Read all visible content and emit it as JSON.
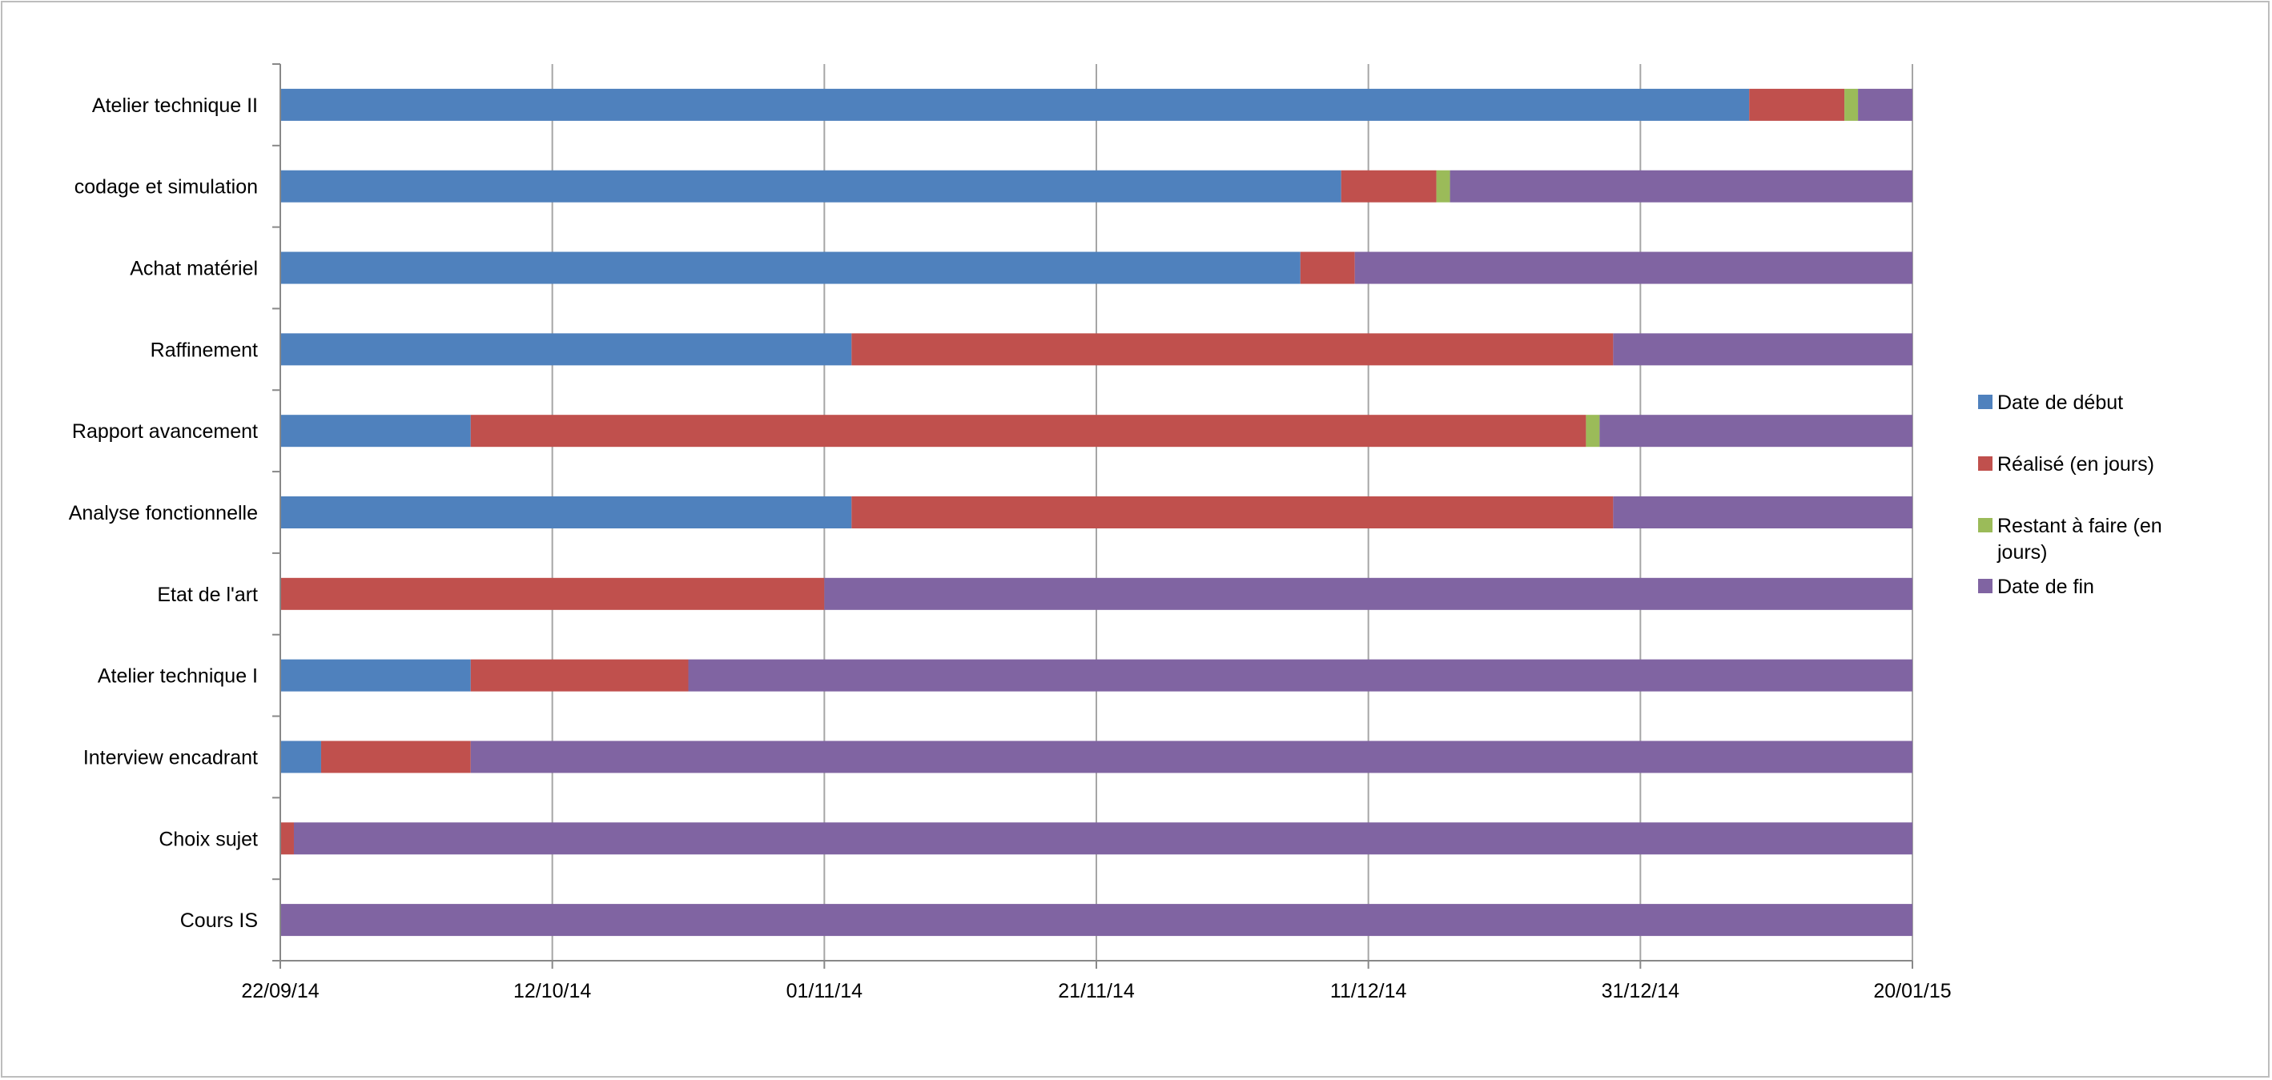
{
  "chart_data": {
    "type": "bar",
    "orientation": "horizontal",
    "stacked": true,
    "title": "",
    "xlabel": "",
    "ylabel": "",
    "categories": [
      "Cours IS",
      "Choix sujet",
      "Interview encadrant",
      "Atelier technique I",
      "Etat de l'art",
      "Analyse fonctionnelle",
      "Rapport avancement",
      "Raffinement",
      "Achat matériel",
      "codage et simulation",
      "Atelier technique II"
    ],
    "series": [
      {
        "name": "Date de début",
        "color": "#4f81bd",
        "values": [
          "",
          "",
          "2014-09-25",
          "2014-10-06",
          "",
          "2014-11-03",
          "2014-10-06",
          "2014-11-03",
          "2014-12-06",
          "2014-12-09",
          "2015-01-08"
        ]
      },
      {
        "name": "Réalisé (en jours)",
        "color": "#c0504d",
        "values": [
          0,
          1,
          11,
          16,
          40,
          56,
          82,
          56,
          4,
          7,
          7
        ]
      },
      {
        "name": "Restant à faire (en jours)",
        "color": "#9bbb59",
        "values": [
          0,
          0,
          0,
          0,
          0,
          0,
          1,
          0,
          0,
          1,
          1
        ]
      },
      {
        "name": "Date de fin",
        "color": "#8064a2",
        "values": [
          "2015-01-20",
          "2015-01-20",
          "2015-01-20",
          "2015-01-20",
          "2015-01-20",
          "2015-01-20",
          "2015-01-20",
          "2015-01-20",
          "2015-01-20",
          "2015-01-20",
          "2015-01-20"
        ]
      }
    ],
    "x_axis": {
      "min": "2014-09-22",
      "max": "2015-01-20",
      "ticks": [
        "22/09/14",
        "12/10/14",
        "01/11/14",
        "21/11/14",
        "11/12/14",
        "31/12/14",
        "20/01/15"
      ]
    },
    "grid": "vertical",
    "legend": "right"
  }
}
